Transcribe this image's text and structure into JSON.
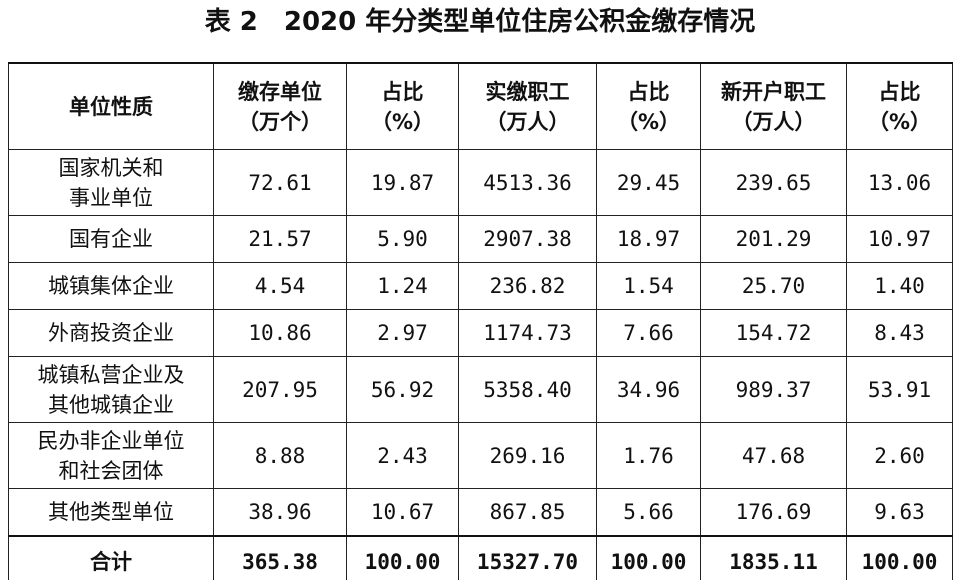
{
  "title": "表 2　2020 年分类型单位住房公积金缴存情况",
  "table": {
    "header": [
      "单位性质",
      "缴存单位\n（万个）",
      "占比\n（%）",
      "实缴职工\n（万人）",
      "占比\n（%）",
      "新开户职工\n（万人）",
      "占比\n（%）"
    ],
    "rows": [
      [
        "国家机关和\n事业单位",
        "72.61",
        "19.87",
        "4513.36",
        "29.45",
        "239.65",
        "13.06"
      ],
      [
        "国有企业",
        "21.57",
        "5.90",
        "2907.38",
        "18.97",
        "201.29",
        "10.97"
      ],
      [
        "城镇集体企业",
        "4.54",
        "1.24",
        "236.82",
        "1.54",
        "25.70",
        "1.40"
      ],
      [
        "外商投资企业",
        "10.86",
        "2.97",
        "1174.73",
        "7.66",
        "154.72",
        "8.43"
      ],
      [
        "城镇私营企业及\n其他城镇企业",
        "207.95",
        "56.92",
        "5358.40",
        "34.96",
        "989.37",
        "53.91"
      ],
      [
        "民办非企业单位\n和社会团体",
        "8.88",
        "2.43",
        "269.16",
        "1.76",
        "47.68",
        "2.60"
      ],
      [
        "其他类型单位",
        "38.96",
        "10.67",
        "867.85",
        "5.66",
        "176.69",
        "9.63"
      ]
    ],
    "total": [
      "合计",
      "365.38",
      "100.00",
      "15327.70",
      "100.00",
      "1835.11",
      "100.00"
    ]
  }
}
